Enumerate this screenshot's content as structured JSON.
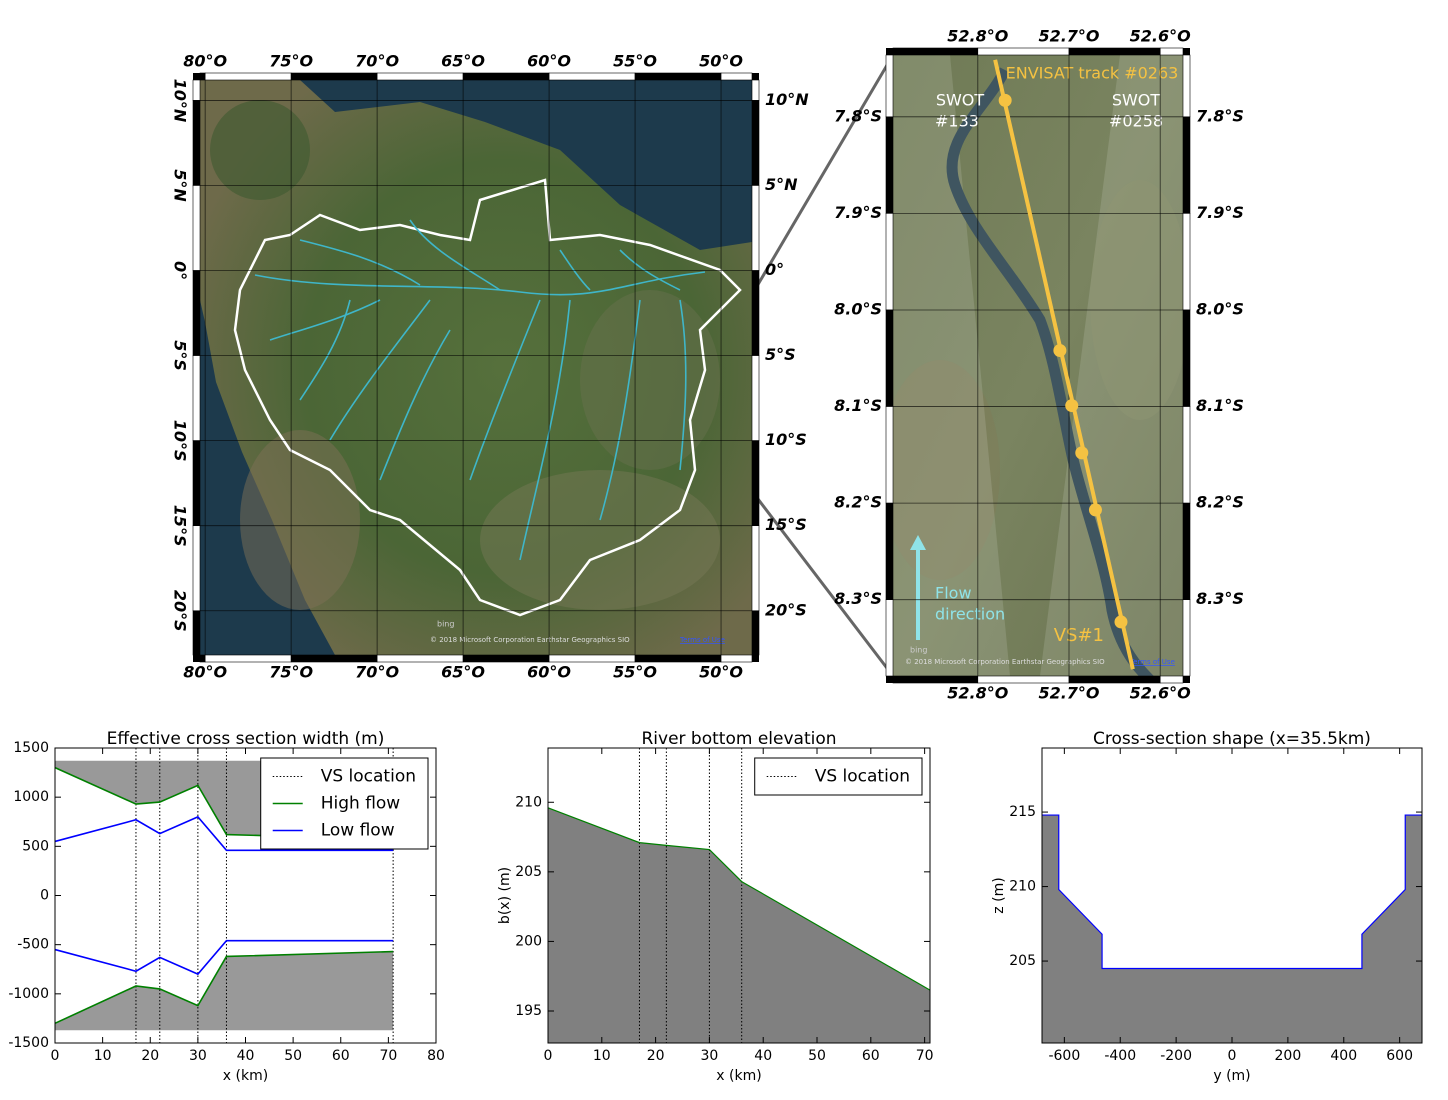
{
  "maps": [
    {
      "xlim": [
        -80.3,
        -48.2
      ],
      "ylim": [
        -22.6,
        11.2
      ],
      "lon_ticks": [
        {
          "value": -80,
          "label": "80°O"
        },
        {
          "value": -75,
          "label": "75°O"
        },
        {
          "value": -70,
          "label": "70°O"
        },
        {
          "value": -65,
          "label": "65°O"
        },
        {
          "value": -60,
          "label": "60°O"
        },
        {
          "value": -55,
          "label": "55°O"
        },
        {
          "value": -50,
          "label": "50°O"
        }
      ],
      "lat_ticks": [
        {
          "value": 10,
          "label": "10°N"
        },
        {
          "value": 5,
          "label": "5°N"
        },
        {
          "value": 0,
          "label": "0°"
        },
        {
          "value": -5,
          "label": "5°S"
        },
        {
          "value": -10,
          "label": "10°S"
        },
        {
          "value": -15,
          "label": "15°S"
        },
        {
          "value": -20,
          "label": "20°S"
        }
      ],
      "logo": "bing",
      "attribution": "© 2018 Microsoft Corporation Earthstar Geographics SIO",
      "terms": "Terms of Use"
    },
    {
      "xlim": [
        -52.893,
        -52.575
      ],
      "ylim": [
        -8.379,
        -7.736
      ],
      "lon_ticks": [
        {
          "value": -52.8,
          "label": "52.8°O"
        },
        {
          "value": -52.7,
          "label": "52.7°O"
        },
        {
          "value": -52.6,
          "label": "52.6°O"
        }
      ],
      "lat_ticks": [
        {
          "value": -7.8,
          "label": "7.8°S"
        },
        {
          "value": -7.9,
          "label": "7.9°S"
        },
        {
          "value": -8.0,
          "label": "8.0°S"
        },
        {
          "value": -8.1,
          "label": "8.1°S"
        },
        {
          "value": -8.2,
          "label": "8.2°S"
        },
        {
          "value": -8.3,
          "label": "8.3°S"
        }
      ],
      "track": {
        "name": "ENVISAT track #0263",
        "color": "#f5c242",
        "lon": [
          -52.781,
          -52.63
        ],
        "lat": [
          -7.741,
          -8.372
        ]
      },
      "stations": {
        "name": "VS#1",
        "color": "#f5c242",
        "lon": [
          -52.77,
          -52.71,
          -52.697,
          -52.686,
          -52.671,
          -52.643
        ],
        "lat": [
          -7.783,
          -8.042,
          -8.099,
          -8.148,
          -8.207,
          -8.323
        ]
      },
      "swot_tracks": [
        [
          "SWOT",
          "#133"
        ],
        [
          "SWOT",
          "#0258"
        ]
      ],
      "flow_label": [
        "Flow",
        "direction"
      ],
      "logo": "bing",
      "attribution": "© 2018 Microsoft Corporation Earthstar Geographics SIO",
      "terms": "Terms of Use"
    }
  ],
  "chart_data": [
    {
      "type": "line",
      "title": "Effective cross section width (m)",
      "x": [
        0,
        17,
        22,
        30,
        36,
        71
      ],
      "series": [
        {
          "name": "High flow",
          "color": "#008000",
          "upper": [
            1300,
            930,
            950,
            1120,
            620,
            570
          ],
          "lower": [
            -1300,
            -920,
            -950,
            -1120,
            -620,
            -570
          ]
        },
        {
          "name": "Low flow",
          "color": "#0000ff",
          "upper": [
            550,
            770,
            630,
            800,
            460,
            460
          ],
          "lower": [
            -550,
            -770,
            -630,
            -800,
            -460,
            -460
          ]
        }
      ],
      "fill": {
        "color": "#999999",
        "bounds": [
          1370,
          -1370
        ]
      },
      "vs_location": {
        "name": "VS location",
        "x": [
          17,
          22,
          30,
          36,
          71
        ]
      },
      "xlim": [
        0,
        80
      ],
      "xticks": [
        0,
        10,
        20,
        30,
        40,
        50,
        60,
        70,
        80
      ],
      "ylim": [
        -1500,
        1500
      ],
      "yticks": [
        -1500,
        -1000,
        -500,
        0,
        500,
        1000,
        1500
      ],
      "xlabel": "x (km)",
      "legend": "upper right"
    },
    {
      "type": "area",
      "title": "River bottom elevation",
      "x": [
        0,
        17,
        22,
        30,
        36,
        71
      ],
      "values": [
        209.6,
        207.1,
        206.9,
        206.6,
        204.3,
        196.5
      ],
      "color": "#008000",
      "fill_color": "#808080",
      "vs_location": {
        "name": "VS location",
        "x": [
          17,
          22,
          30,
          36
        ]
      },
      "xlim": [
        0,
        71
      ],
      "xticks": [
        0,
        10,
        20,
        30,
        40,
        50,
        60,
        70
      ],
      "ylim": [
        192.7,
        213.9
      ],
      "yticks": [
        195,
        200,
        205,
        210
      ],
      "xlabel": "x (km)",
      "ylabel": "b(x) (m)",
      "legend": "upper right"
    },
    {
      "type": "area",
      "title": "Cross-section shape (x=35.5km)",
      "x": [
        -680,
        -620,
        -620,
        -465,
        -465,
        465,
        465,
        620,
        620,
        680
      ],
      "values": [
        214.8,
        214.8,
        209.8,
        206.8,
        204.5,
        204.5,
        206.8,
        209.8,
        214.8,
        214.8
      ],
      "color": "#0000ff",
      "fill_color": "#808080",
      "xlim": [
        -680,
        680
      ],
      "xticks": [
        -600,
        -400,
        -200,
        0,
        200,
        400,
        600
      ],
      "ylim": [
        199.5,
        219.3
      ],
      "yticks": [
        205,
        210,
        215
      ],
      "xlabel": "y (m)",
      "ylabel": "z (m)"
    }
  ]
}
